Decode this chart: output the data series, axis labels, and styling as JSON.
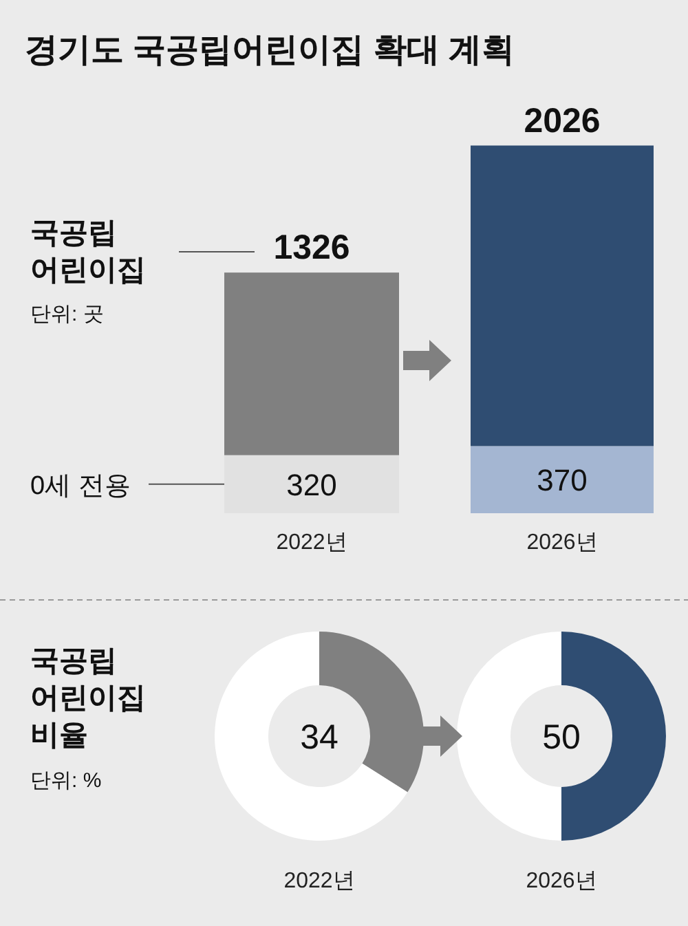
{
  "chart_data": [
    {
      "type": "bar",
      "title": "경기도  국공립어린이집 확대 계획",
      "categories": [
        "2022년",
        "2026년"
      ],
      "stacked": true,
      "series": [
        {
          "name": "0세 전용",
          "colors": [
            "#e1e1e1",
            "#a4b6d2"
          ],
          "values": [
            320,
            370
          ],
          "value_labels": [
            "320",
            "370"
          ]
        },
        {
          "colors": [
            "#808080",
            "#2f4d72"
          ],
          "values": [
            1006,
            1656
          ]
        }
      ],
      "totals": [
        "1326",
        "2026"
      ],
      "annotations": [
        "국공립\n어린이집",
        "단위: 곳"
      ]
    },
    {
      "type": "donut",
      "categories": [
        null,
        null
      ],
      "values": [
        34,
        66
      ],
      "colors": [
        "#808080",
        "#ffffff"
      ],
      "xlabel": "2022년",
      "annotations": [
        "34",
        "국공립\n어린이집\n비율",
        "단위: %"
      ]
    },
    {
      "type": "donut",
      "categories": [
        null,
        null
      ],
      "values": [
        50,
        50
      ],
      "colors": [
        "#2f4d72",
        "#ffffff"
      ],
      "xlabel": "2026년",
      "annotations": [
        "50"
      ]
    }
  ]
}
